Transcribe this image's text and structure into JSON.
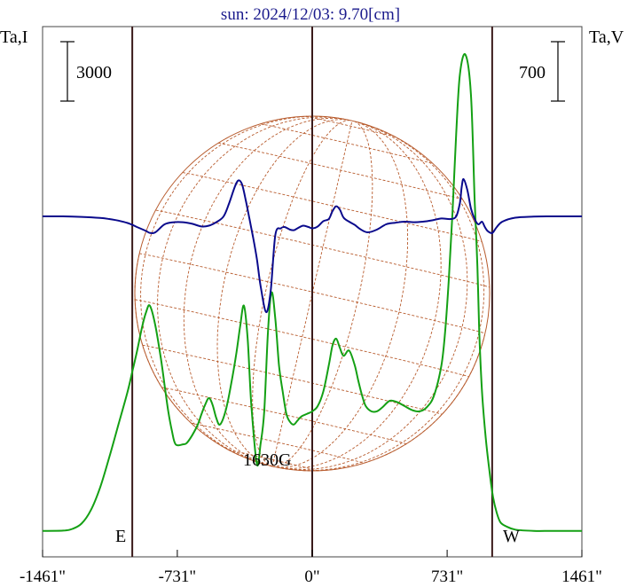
{
  "chart_data": {
    "type": "line",
    "title": "sun: 2024/12/03: 9.70[cm]",
    "left_axis_label": "Ta,I",
    "right_axis_label": "Ta,V",
    "left_scale_label": "3000",
    "right_scale_label": "700",
    "x_unit": "arcsec",
    "x_ticks": [
      "-1461\"",
      "-731\"",
      "0\"",
      "731\"",
      "1461\""
    ],
    "x_tick_values": [
      -1461,
      -731,
      0,
      731,
      1461
    ],
    "xlim": [
      -1461,
      1461
    ],
    "east_label": "E",
    "west_label": "W",
    "feature_label": "1630G",
    "vertical_markers": [
      -975,
      0,
      975
    ],
    "limb_markers_note": "",
    "colors": {
      "intensity": "#0a0a8c",
      "polarization": "#14a014",
      "grid": "#b85c2e",
      "markers": "#3a1a1a"
    },
    "series": [
      {
        "key": "I",
        "y_scale": "left",
        "x": [
          -1461,
          -1350,
          -1250,
          -1150,
          -1100,
          -1050,
          -1000,
          -975,
          -950,
          -900,
          -880,
          -850,
          -800,
          -750,
          -700,
          -650,
          -600,
          -560,
          -520,
          -480,
          -450,
          -420,
          -400,
          -380,
          -360,
          -340,
          -320,
          -300,
          -280,
          -250,
          -225,
          -200,
          -170,
          -150,
          -120,
          -100,
          -80,
          -50,
          -20,
          0,
          30,
          60,
          90,
          110,
          130,
          150,
          170,
          200,
          230,
          260,
          300,
          350,
          400,
          450,
          500,
          550,
          600,
          650,
          700,
          750,
          780,
          800,
          810,
          820,
          840,
          860,
          880,
          900,
          920,
          935,
          950,
          970,
          980,
          1000,
          1030,
          1100,
          1200,
          1300,
          1461
        ],
        "values": [
          1.0,
          1.0,
          0.98,
          0.94,
          0.9,
          0.84,
          0.75,
          0.68,
          0.6,
          0.45,
          0.38,
          0.4,
          0.7,
          0.78,
          0.78,
          0.72,
          0.62,
          0.65,
          0.78,
          1.0,
          1.5,
          2.1,
          2.35,
          2.2,
          1.6,
          0.9,
          0.2,
          -0.6,
          -1.6,
          -2.6,
          -1.8,
          0.3,
          0.55,
          0.6,
          0.5,
          0.48,
          0.55,
          0.65,
          0.6,
          0.55,
          0.62,
          0.82,
          0.9,
          1.2,
          1.38,
          1.25,
          0.95,
          0.8,
          0.68,
          0.52,
          0.4,
          0.5,
          0.7,
          0.76,
          0.8,
          0.78,
          0.8,
          0.85,
          0.92,
          0.9,
          1.0,
          1.5,
          2.1,
          2.4,
          2.0,
          1.3,
          0.9,
          0.7,
          0.8,
          0.6,
          0.45,
          0.37,
          0.4,
          0.6,
          0.8,
          0.95,
          0.99,
          1.0,
          1.0
        ]
      },
      {
        "key": "V",
        "y_scale": "right",
        "x": [
          -1461,
          -1350,
          -1300,
          -1250,
          -1200,
          -1150,
          -1100,
          -1050,
          -1000,
          -975,
          -950,
          -920,
          -900,
          -880,
          -850,
          -820,
          -800,
          -780,
          -760,
          -740,
          -700,
          -680,
          -650,
          -620,
          -600,
          -580,
          -560,
          -540,
          -520,
          -500,
          -470,
          -440,
          -410,
          -390,
          -370,
          -350,
          -330,
          -300,
          -280,
          -260,
          -240,
          -220,
          -200,
          -180,
          -160,
          -140,
          -120,
          -100,
          -80,
          -60,
          -30,
          0,
          30,
          60,
          90,
          110,
          130,
          150,
          170,
          200,
          230,
          250,
          270,
          290,
          320,
          350,
          380,
          420,
          460,
          500,
          540,
          580,
          620,
          660,
          700,
          720,
          740,
          760,
          780,
          800,
          830,
          860,
          880,
          895,
          905,
          920,
          940,
          960,
          980,
          1000,
          1020,
          1050,
          1100,
          1200,
          1300,
          1461
        ],
        "values": [
          -0.05,
          -0.03,
          0.1,
          0.5,
          1.5,
          3.2,
          5.5,
          8.0,
          10.5,
          12.0,
          13.5,
          15.5,
          16.5,
          17.0,
          15.5,
          13.0,
          11.0,
          9.0,
          7.5,
          6.5,
          6.5,
          6.6,
          7.2,
          8.0,
          8.8,
          9.5,
          10.0,
          9.5,
          8.5,
          8.0,
          9.0,
          11.0,
          13.5,
          15.5,
          17.0,
          14.5,
          9.5,
          5.0,
          6.5,
          9.0,
          15.0,
          18.0,
          16.0,
          12.5,
          10.5,
          8.8,
          8.2,
          8.0,
          8.3,
          8.6,
          8.8,
          9.0,
          9.4,
          10.5,
          12.5,
          14.0,
          14.5,
          13.8,
          13.2,
          13.6,
          12.5,
          11.3,
          10.2,
          9.4,
          9.0,
          9.0,
          9.3,
          9.8,
          9.7,
          9.4,
          9.1,
          9.0,
          9.3,
          10.2,
          12.5,
          15.0,
          19.0,
          24.0,
          30.0,
          34.5,
          36.0,
          33.0,
          25.0,
          20.0,
          15.0,
          10.5,
          7.0,
          4.5,
          2.5,
          1.3,
          0.6,
          0.3,
          0.05,
          -0.05,
          -0.05,
          -0.05
        ]
      }
    ]
  }
}
